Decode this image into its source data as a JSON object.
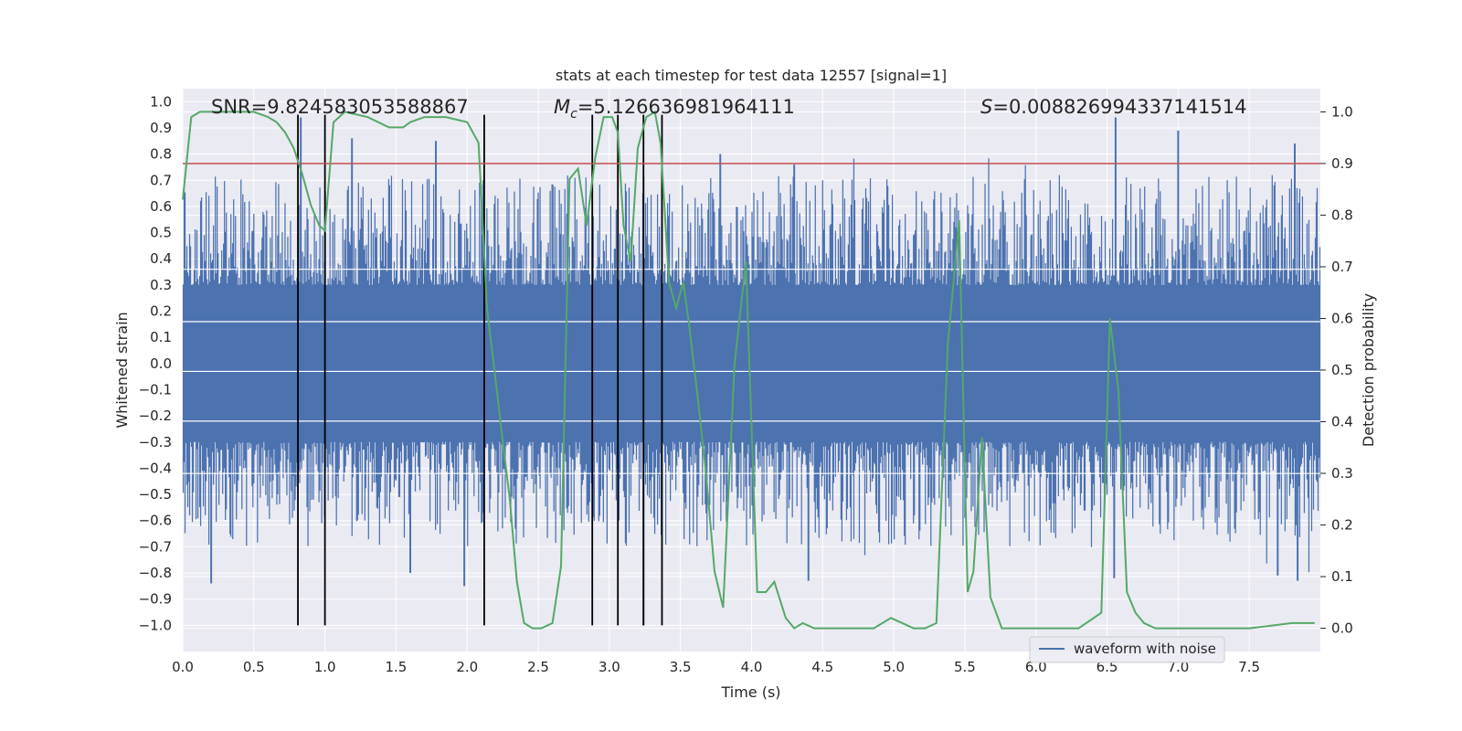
{
  "chart_data": {
    "type": "line",
    "title": "stats at each timestep for test data 12557 [signal=1]",
    "xlabel": "Time (s)",
    "ylabel": "Whitened strain",
    "y2label": "Detection probability",
    "xlim": [
      0.0,
      8.0
    ],
    "ylim": [
      -1.1,
      1.05
    ],
    "y2lim": [
      -0.045,
      1.045
    ],
    "xticks": [
      "0.0",
      "0.5",
      "1.0",
      "1.5",
      "2.0",
      "2.5",
      "3.0",
      "3.5",
      "4.0",
      "4.5",
      "5.0",
      "5.5",
      "6.0",
      "6.5",
      "7.0",
      "7.5"
    ],
    "yticks": [
      "1.0",
      "0.9",
      "0.8",
      "0.7",
      "0.6",
      "0.5",
      "0.4",
      "0.3",
      "0.2",
      "0.1",
      "0.0",
      "-0.1",
      "-0.2",
      "-0.3",
      "-0.4",
      "-0.5",
      "-0.6",
      "-0.7",
      "-0.8",
      "-0.9",
      "-1.0"
    ],
    "y2ticks": [
      "1.0",
      "0.9",
      "0.8",
      "0.7",
      "0.6",
      "0.5",
      "0.4",
      "0.3",
      "0.2",
      "0.1",
      "0.0"
    ],
    "annotations": {
      "snr": "SNR=9.824583053588867",
      "mc_symbol": "M",
      "mc_sub": "c",
      "mc_value": "=5.126636981964111",
      "s_symbol": "S",
      "s_value": "=0.008826994337141514"
    },
    "threshold": 0.9,
    "vertical_lines": [
      0.81,
      1.0,
      2.12,
      2.88,
      3.06,
      3.24,
      3.37
    ],
    "series": [
      {
        "name": "waveform with noise",
        "color": "#4c72b0",
        "axis": "left",
        "peaks": [
          {
            "x": 0.83,
            "v": 0.94
          },
          {
            "x": 1.19,
            "v": 0.86
          },
          {
            "x": 1.78,
            "v": 0.85
          },
          {
            "x": 3.78,
            "v": 0.8
          },
          {
            "x": 4.3,
            "v": 0.76
          },
          {
            "x": 6.56,
            "v": 0.94
          },
          {
            "x": 7.0,
            "v": 0.89
          },
          {
            "x": 7.82,
            "v": 0.84
          },
          {
            "x": 0.2,
            "v": -0.84
          },
          {
            "x": 1.6,
            "v": -0.8
          },
          {
            "x": 1.98,
            "v": -0.85
          },
          {
            "x": 3.24,
            "v": -1.0
          },
          {
            "x": 4.4,
            "v": -0.83
          },
          {
            "x": 6.55,
            "v": -0.82
          },
          {
            "x": 7.7,
            "v": -0.81
          },
          {
            "x": 7.84,
            "v": -0.83
          }
        ]
      },
      {
        "name": "detection probability",
        "color": "#55a868",
        "axis": "right",
        "x": [
          0.0,
          0.06,
          0.12,
          0.3,
          0.5,
          0.6,
          0.66,
          0.72,
          0.78,
          0.84,
          0.9,
          0.96,
          1.0,
          1.06,
          1.14,
          1.3,
          1.45,
          1.55,
          1.6,
          1.7,
          1.85,
          2.0,
          2.08,
          2.14,
          2.2,
          2.26,
          2.3,
          2.35,
          2.4,
          2.46,
          2.52,
          2.6,
          2.66,
          2.72,
          2.78,
          2.84,
          2.9,
          2.96,
          3.02,
          3.06,
          3.1,
          3.15,
          3.2,
          3.26,
          3.32,
          3.36,
          3.42,
          3.47,
          3.52,
          3.56,
          3.62,
          3.68,
          3.74,
          3.8,
          3.88,
          3.96,
          4.04,
          4.1,
          4.16,
          4.24,
          4.3,
          4.36,
          4.44,
          4.5,
          4.6,
          4.72,
          4.86,
          4.98,
          5.06,
          5.14,
          5.22,
          5.3,
          5.38,
          5.46,
          5.52,
          5.56,
          5.62,
          5.68,
          5.76,
          5.82,
          5.94,
          6.1,
          6.3,
          6.46,
          6.52,
          6.58,
          6.64,
          6.7,
          6.76,
          6.84,
          6.92,
          7.0,
          7.2,
          7.5,
          7.8,
          7.96
        ],
        "values": [
          0.83,
          0.99,
          1.0,
          1.0,
          1.0,
          0.99,
          0.98,
          0.96,
          0.93,
          0.88,
          0.82,
          0.78,
          0.77,
          0.98,
          1.0,
          0.99,
          0.97,
          0.97,
          0.98,
          0.99,
          0.99,
          0.98,
          0.94,
          0.62,
          0.48,
          0.34,
          0.25,
          0.09,
          0.01,
          0.0,
          0.0,
          0.01,
          0.12,
          0.87,
          0.89,
          0.78,
          0.91,
          0.99,
          0.99,
          0.96,
          0.78,
          0.71,
          0.93,
          0.99,
          1.0,
          0.94,
          0.67,
          0.62,
          0.67,
          0.59,
          0.45,
          0.3,
          0.11,
          0.04,
          0.51,
          0.71,
          0.07,
          0.07,
          0.09,
          0.02,
          0.0,
          0.01,
          0.0,
          0.0,
          0.0,
          0.0,
          0.0,
          0.02,
          0.01,
          0.0,
          0.0,
          0.01,
          0.55,
          0.79,
          0.07,
          0.11,
          0.37,
          0.06,
          0.0,
          0.0,
          0.0,
          0.0,
          0.0,
          0.03,
          0.6,
          0.46,
          0.07,
          0.03,
          0.01,
          0.0,
          0.0,
          0.0,
          0.0,
          0.0,
          0.01,
          0.01
        ]
      }
    ],
    "legend": {
      "label": "waveform with noise",
      "position": "lower-right"
    },
    "colors": {
      "axes_bg": "#eaeaf2",
      "grid": "#ffffff",
      "threshold": "#c44e52",
      "vlines": "#000000",
      "bg": "#ffffff"
    }
  }
}
